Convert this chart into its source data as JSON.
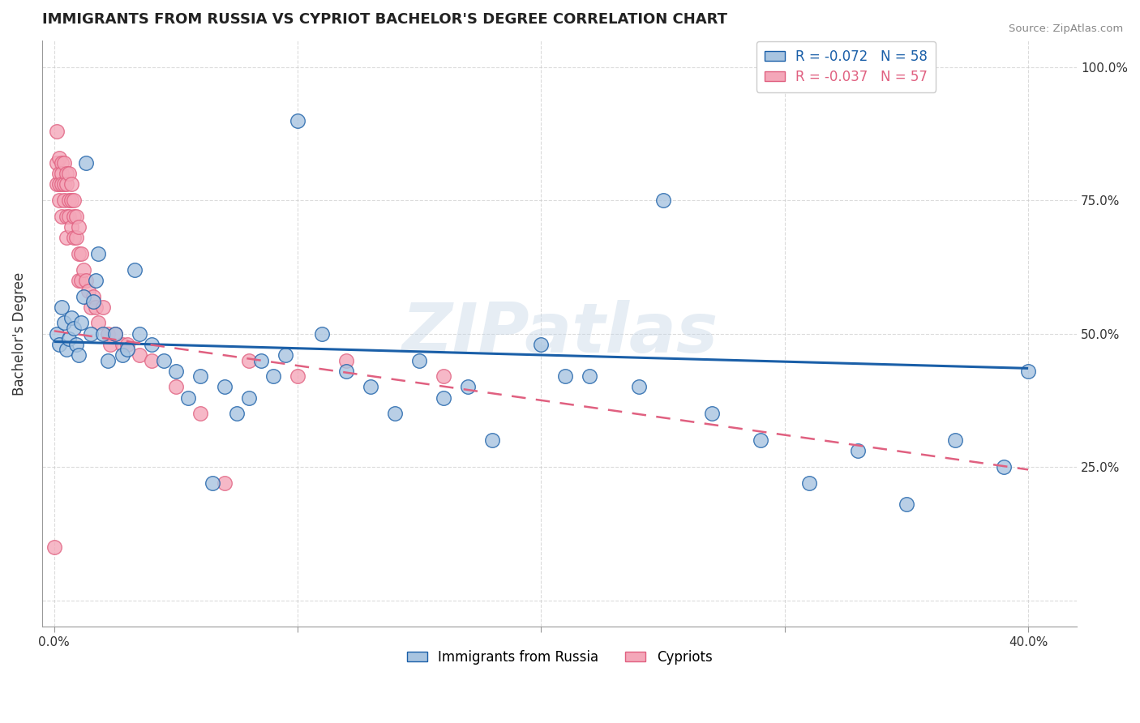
{
  "title": "IMMIGRANTS FROM RUSSIA VS CYPRIOT BACHELOR'S DEGREE CORRELATION CHART",
  "source": "Source: ZipAtlas.com",
  "ylabel_label": "Bachelor's Degree",
  "legend_r1": "R = -0.072",
  "legend_n1": "N = 58",
  "legend_r2": "R = -0.037",
  "legend_n2": "N = 57",
  "legend_label1": "Immigrants from Russia",
  "legend_label2": "Cypriots",
  "color_blue": "#a8c4e0",
  "color_pink": "#f4a7b9",
  "line_blue": "#1a5fa8",
  "line_pink": "#e06080",
  "text_blue": "#1a5fa8",
  "text_pink": "#e06080",
  "watermark_text": "ZIPatlas",
  "grid_color": "#cccccc",
  "xlim": [
    -0.005,
    0.42
  ],
  "ylim": [
    -0.05,
    1.05
  ],
  "blue_points_x": [
    0.001,
    0.002,
    0.003,
    0.004,
    0.005,
    0.006,
    0.007,
    0.008,
    0.009,
    0.01,
    0.011,
    0.012,
    0.013,
    0.015,
    0.016,
    0.017,
    0.018,
    0.02,
    0.022,
    0.025,
    0.028,
    0.03,
    0.033,
    0.035,
    0.04,
    0.045,
    0.05,
    0.055,
    0.06,
    0.065,
    0.07,
    0.075,
    0.08,
    0.085,
    0.09,
    0.095,
    0.1,
    0.11,
    0.12,
    0.13,
    0.14,
    0.15,
    0.16,
    0.17,
    0.18,
    0.2,
    0.21,
    0.22,
    0.24,
    0.25,
    0.27,
    0.29,
    0.31,
    0.33,
    0.35,
    0.37,
    0.39,
    0.4
  ],
  "blue_points_y": [
    0.5,
    0.48,
    0.55,
    0.52,
    0.47,
    0.49,
    0.53,
    0.51,
    0.48,
    0.46,
    0.52,
    0.57,
    0.82,
    0.5,
    0.56,
    0.6,
    0.65,
    0.5,
    0.45,
    0.5,
    0.46,
    0.47,
    0.62,
    0.5,
    0.48,
    0.45,
    0.43,
    0.38,
    0.42,
    0.22,
    0.4,
    0.35,
    0.38,
    0.45,
    0.42,
    0.46,
    0.9,
    0.5,
    0.43,
    0.4,
    0.35,
    0.45,
    0.38,
    0.4,
    0.3,
    0.48,
    0.42,
    0.42,
    0.4,
    0.75,
    0.35,
    0.3,
    0.22,
    0.28,
    0.18,
    0.3,
    0.25,
    0.43
  ],
  "pink_points_x": [
    0.0,
    0.001,
    0.001,
    0.001,
    0.002,
    0.002,
    0.002,
    0.002,
    0.003,
    0.003,
    0.003,
    0.003,
    0.004,
    0.004,
    0.004,
    0.005,
    0.005,
    0.005,
    0.005,
    0.006,
    0.006,
    0.006,
    0.007,
    0.007,
    0.007,
    0.008,
    0.008,
    0.008,
    0.009,
    0.009,
    0.01,
    0.01,
    0.01,
    0.011,
    0.011,
    0.012,
    0.013,
    0.014,
    0.015,
    0.016,
    0.017,
    0.018,
    0.02,
    0.022,
    0.023,
    0.025,
    0.028,
    0.03,
    0.035,
    0.04,
    0.05,
    0.06,
    0.07,
    0.08,
    0.1,
    0.12,
    0.16
  ],
  "pink_points_y": [
    0.1,
    0.88,
    0.82,
    0.78,
    0.83,
    0.8,
    0.78,
    0.75,
    0.82,
    0.8,
    0.78,
    0.72,
    0.82,
    0.78,
    0.75,
    0.8,
    0.78,
    0.72,
    0.68,
    0.8,
    0.75,
    0.72,
    0.78,
    0.75,
    0.7,
    0.75,
    0.72,
    0.68,
    0.72,
    0.68,
    0.7,
    0.65,
    0.6,
    0.65,
    0.6,
    0.62,
    0.6,
    0.58,
    0.55,
    0.57,
    0.55,
    0.52,
    0.55,
    0.5,
    0.48,
    0.5,
    0.48,
    0.48,
    0.46,
    0.45,
    0.4,
    0.35,
    0.22,
    0.45,
    0.42,
    0.45,
    0.42
  ],
  "blue_trend_x": [
    0.0,
    0.4
  ],
  "blue_trend_y": [
    0.485,
    0.435
  ],
  "pink_trend_x": [
    0.0,
    0.4
  ],
  "pink_trend_y": [
    0.505,
    0.245
  ]
}
